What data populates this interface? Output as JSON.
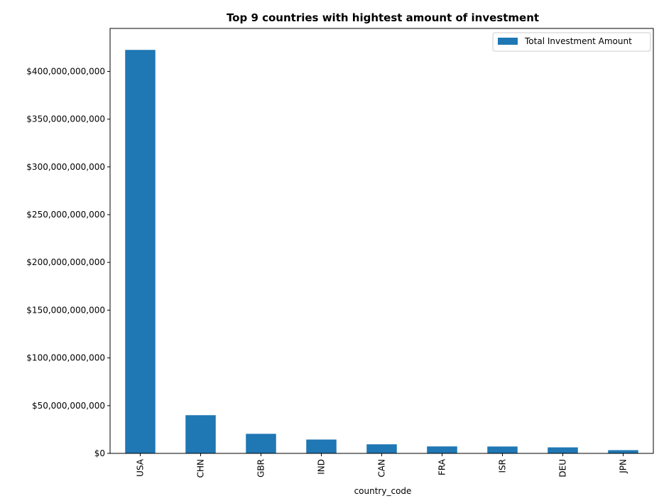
{
  "chart_data": {
    "type": "bar",
    "title": "Top 9 countries with hightest amount of investment",
    "xlabel": "country_code",
    "ylabel": "",
    "categories": [
      "USA",
      "CHN",
      "GBR",
      "IND",
      "CAN",
      "FRA",
      "ISR",
      "DEU",
      "JPN"
    ],
    "series": [
      {
        "name": "Total Investment Amount",
        "color": "#1f77b4",
        "values": [
          422500000000,
          40000000000,
          20500000000,
          14500000000,
          9500000000,
          7300000000,
          7200000000,
          6300000000,
          3400000000
        ]
      }
    ],
    "ylim": [
      0,
      445000000000
    ],
    "yticks": [
      0,
      50000000000,
      100000000000,
      150000000000,
      200000000000,
      250000000000,
      300000000000,
      350000000000,
      400000000000
    ],
    "ytick_labels": [
      "$0",
      "$50,000,000,000",
      "$100,000,000,000",
      "$150,000,000,000",
      "$200,000,000,000",
      "$250,000,000,000",
      "$300,000,000,000",
      "$350,000,000,000",
      "$400,000,000,000"
    ],
    "grid": false,
    "legend_position": "top-right"
  }
}
